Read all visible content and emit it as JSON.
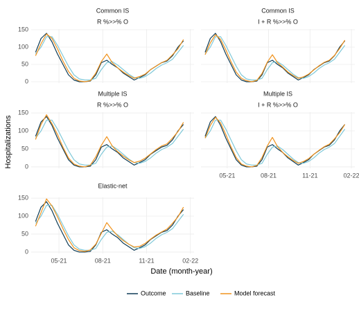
{
  "chart_data": [
    {
      "type": "line",
      "title": "Common IS",
      "subtitle": "R %>>% O",
      "y_label": "Hospitalizations",
      "x_label": "Date (month-year)",
      "x": [
        3.4,
        3.775,
        4.15,
        4.525,
        4.9,
        5.275,
        5.65,
        6.025,
        6.4,
        6.775,
        7.15,
        7.525,
        7.9,
        8.275,
        8.65,
        9.025,
        9.4,
        9.775,
        10.15,
        10.525,
        10.9,
        11.275,
        11.65,
        12.025,
        12.4,
        12.775,
        13.15,
        13.525
      ],
      "xlim": [
        3.1,
        14.25
      ],
      "xticks": [
        {
          "value": 5,
          "label": "05-21"
        },
        {
          "value": 8,
          "label": "08-21"
        },
        {
          "value": 11,
          "label": "11-21"
        },
        {
          "value": 14,
          "label": "02-22"
        }
      ],
      "ylim": [
        -4,
        152
      ],
      "yticks": [
        0,
        50,
        100,
        150
      ],
      "grid": true,
      "series": [
        {
          "name": "Outcome",
          "color": "#0d3b55",
          "values": [
            85,
            125,
            140,
            115,
            80,
            50,
            20,
            5,
            0,
            0,
            2,
            20,
            55,
            62,
            50,
            40,
            25,
            15,
            5,
            12,
            20,
            35,
            45,
            55,
            60,
            75,
            100,
            118
          ]
        },
        {
          "name": "Baseline",
          "color": "#7ec8d8",
          "values": [
            80,
            100,
            130,
            130,
            105,
            75,
            45,
            20,
            8,
            5,
            5,
            10,
            35,
            55,
            58,
            48,
            35,
            22,
            12,
            10,
            15,
            25,
            38,
            48,
            55,
            65,
            85,
            105
          ]
        },
        {
          "name": "Model forecast",
          "color": "#f0921c",
          "values": [
            75,
            110,
            138,
            125,
            95,
            60,
            30,
            10,
            2,
            0,
            3,
            25,
            58,
            80,
            55,
            40,
            28,
            18,
            10,
            15,
            22,
            35,
            45,
            55,
            62,
            78,
            95,
            122
          ]
        }
      ]
    },
    {
      "type": "line",
      "title": "Common IS",
      "subtitle": "I + R %>>% O",
      "x": [
        3.4,
        3.775,
        4.15,
        4.525,
        4.9,
        5.275,
        5.65,
        6.025,
        6.4,
        6.775,
        7.15,
        7.525,
        7.9,
        8.275,
        8.65,
        9.025,
        9.4,
        9.775,
        10.15,
        10.525,
        10.9,
        11.275,
        11.65,
        12.025,
        12.4,
        12.775,
        13.15,
        13.525
      ],
      "xlim": [
        3.1,
        14.25
      ],
      "xticks": [
        {
          "value": 5,
          "label": "05-21"
        },
        {
          "value": 8,
          "label": "08-21"
        },
        {
          "value": 11,
          "label": "11-21"
        },
        {
          "value": 14,
          "label": "02-22"
        }
      ],
      "ylim": [
        -4,
        152
      ],
      "yticks": [
        0,
        50,
        100,
        150
      ],
      "grid": true,
      "series": [
        {
          "name": "Outcome",
          "color": "#0d3b55",
          "values": [
            85,
            125,
            140,
            115,
            80,
            50,
            20,
            5,
            0,
            0,
            2,
            20,
            55,
            62,
            50,
            40,
            25,
            15,
            5,
            12,
            20,
            35,
            45,
            55,
            60,
            75,
            100,
            118
          ]
        },
        {
          "name": "Baseline",
          "color": "#7ec8d8",
          "values": [
            80,
            100,
            130,
            130,
            105,
            75,
            45,
            20,
            8,
            5,
            5,
            10,
            35,
            55,
            58,
            48,
            35,
            22,
            12,
            10,
            15,
            25,
            38,
            48,
            55,
            65,
            85,
            105
          ]
        },
        {
          "name": "Model forecast",
          "color": "#f0921c",
          "values": [
            78,
            112,
            136,
            122,
            92,
            58,
            28,
            10,
            3,
            0,
            4,
            24,
            56,
            78,
            55,
            42,
            28,
            18,
            10,
            14,
            22,
            34,
            46,
            56,
            62,
            76,
            96,
            120
          ]
        }
      ]
    },
    {
      "type": "line",
      "title": "Multiple IS",
      "subtitle": "R %>>% O",
      "x": [
        3.4,
        3.775,
        4.15,
        4.525,
        4.9,
        5.275,
        5.65,
        6.025,
        6.4,
        6.775,
        7.15,
        7.525,
        7.9,
        8.275,
        8.65,
        9.025,
        9.4,
        9.775,
        10.15,
        10.525,
        10.9,
        11.275,
        11.65,
        12.025,
        12.4,
        12.775,
        13.15,
        13.525
      ],
      "xlim": [
        3.1,
        14.25
      ],
      "xticks": [
        {
          "value": 5,
          "label": "05-21"
        },
        {
          "value": 8,
          "label": "08-21"
        },
        {
          "value": 11,
          "label": "11-21"
        },
        {
          "value": 14,
          "label": "02-22"
        }
      ],
      "ylim": [
        -4,
        152
      ],
      "yticks": [
        0,
        50,
        100,
        150
      ],
      "grid": true,
      "series": [
        {
          "name": "Outcome",
          "color": "#0d3b55",
          "values": [
            85,
            125,
            140,
            115,
            80,
            50,
            20,
            5,
            0,
            0,
            2,
            20,
            55,
            62,
            50,
            40,
            25,
            15,
            5,
            12,
            20,
            35,
            45,
            55,
            60,
            75,
            100,
            118
          ]
        },
        {
          "name": "Baseline",
          "color": "#7ec8d8",
          "values": [
            80,
            100,
            130,
            130,
            105,
            75,
            45,
            20,
            8,
            5,
            5,
            10,
            35,
            55,
            58,
            48,
            35,
            22,
            12,
            10,
            15,
            25,
            38,
            48,
            55,
            65,
            85,
            105
          ]
        },
        {
          "name": "Model forecast",
          "color": "#f0921c",
          "values": [
            76,
            118,
            145,
            120,
            90,
            55,
            25,
            8,
            2,
            0,
            5,
            28,
            60,
            84,
            58,
            42,
            30,
            20,
            12,
            16,
            24,
            36,
            48,
            58,
            64,
            80,
            98,
            124
          ]
        }
      ]
    },
    {
      "type": "line",
      "title": "Multiple IS",
      "subtitle": "I + R %>>% O",
      "x": [
        3.4,
        3.775,
        4.15,
        4.525,
        4.9,
        5.275,
        5.65,
        6.025,
        6.4,
        6.775,
        7.15,
        7.525,
        7.9,
        8.275,
        8.65,
        9.025,
        9.4,
        9.775,
        10.15,
        10.525,
        10.9,
        11.275,
        11.65,
        12.025,
        12.4,
        12.775,
        13.15,
        13.525
      ],
      "xlim": [
        3.1,
        14.25
      ],
      "xticks": [
        {
          "value": 5,
          "label": "05-21"
        },
        {
          "value": 8,
          "label": "08-21"
        },
        {
          "value": 11,
          "label": "11-21"
        },
        {
          "value": 14,
          "label": "02-22"
        }
      ],
      "ylim": [
        -4,
        152
      ],
      "yticks": [
        0,
        50,
        100,
        150
      ],
      "grid": true,
      "series": [
        {
          "name": "Outcome",
          "color": "#0d3b55",
          "values": [
            85,
            125,
            140,
            115,
            80,
            50,
            20,
            5,
            0,
            0,
            2,
            20,
            55,
            62,
            50,
            40,
            25,
            15,
            5,
            12,
            20,
            35,
            45,
            55,
            60,
            75,
            100,
            118
          ]
        },
        {
          "name": "Baseline",
          "color": "#7ec8d8",
          "values": [
            80,
            100,
            130,
            130,
            105,
            75,
            45,
            20,
            8,
            5,
            5,
            10,
            35,
            55,
            58,
            48,
            35,
            22,
            12,
            10,
            15,
            25,
            38,
            48,
            55,
            65,
            85,
            105
          ]
        },
        {
          "name": "Model forecast",
          "color": "#f0921c",
          "values": [
            80,
            115,
            138,
            122,
            90,
            56,
            26,
            8,
            2,
            0,
            4,
            26,
            58,
            82,
            56,
            40,
            28,
            18,
            10,
            15,
            23,
            35,
            46,
            56,
            63,
            78,
            95,
            118
          ]
        }
      ]
    },
    {
      "type": "line",
      "title": "Elastic-net",
      "x": [
        3.4,
        3.775,
        4.15,
        4.525,
        4.9,
        5.275,
        5.65,
        6.025,
        6.4,
        6.775,
        7.15,
        7.525,
        7.9,
        8.275,
        8.65,
        9.025,
        9.4,
        9.775,
        10.15,
        10.525,
        10.9,
        11.275,
        11.65,
        12.025,
        12.4,
        12.775,
        13.15,
        13.525
      ],
      "xlim": [
        3.1,
        14.25
      ],
      "xticks": [
        {
          "value": 5,
          "label": "05-21"
        },
        {
          "value": 8,
          "label": "08-21"
        },
        {
          "value": 11,
          "label": "11-21"
        },
        {
          "value": 14,
          "label": "02-22"
        }
      ],
      "ylim": [
        -4,
        152
      ],
      "yticks": [
        0,
        50,
        100,
        150
      ],
      "grid": true,
      "series": [
        {
          "name": "Outcome",
          "color": "#0d3b55",
          "values": [
            85,
            125,
            140,
            115,
            80,
            50,
            20,
            5,
            0,
            0,
            2,
            20,
            55,
            62,
            50,
            40,
            25,
            15,
            5,
            12,
            20,
            35,
            45,
            55,
            60,
            75,
            100,
            118
          ]
        },
        {
          "name": "Baseline",
          "color": "#7ec8d8",
          "values": [
            80,
            100,
            130,
            130,
            105,
            75,
            45,
            20,
            8,
            5,
            5,
            10,
            35,
            55,
            58,
            48,
            35,
            22,
            12,
            10,
            15,
            25,
            38,
            48,
            55,
            65,
            85,
            105
          ]
        },
        {
          "name": "Model forecast",
          "color": "#f0921c",
          "values": [
            72,
            110,
            148,
            128,
            98,
            65,
            35,
            12,
            4,
            2,
            6,
            22,
            52,
            82,
            62,
            45,
            32,
            22,
            14,
            16,
            24,
            36,
            47,
            56,
            64,
            80,
            98,
            125
          ]
        }
      ]
    }
  ]
}
